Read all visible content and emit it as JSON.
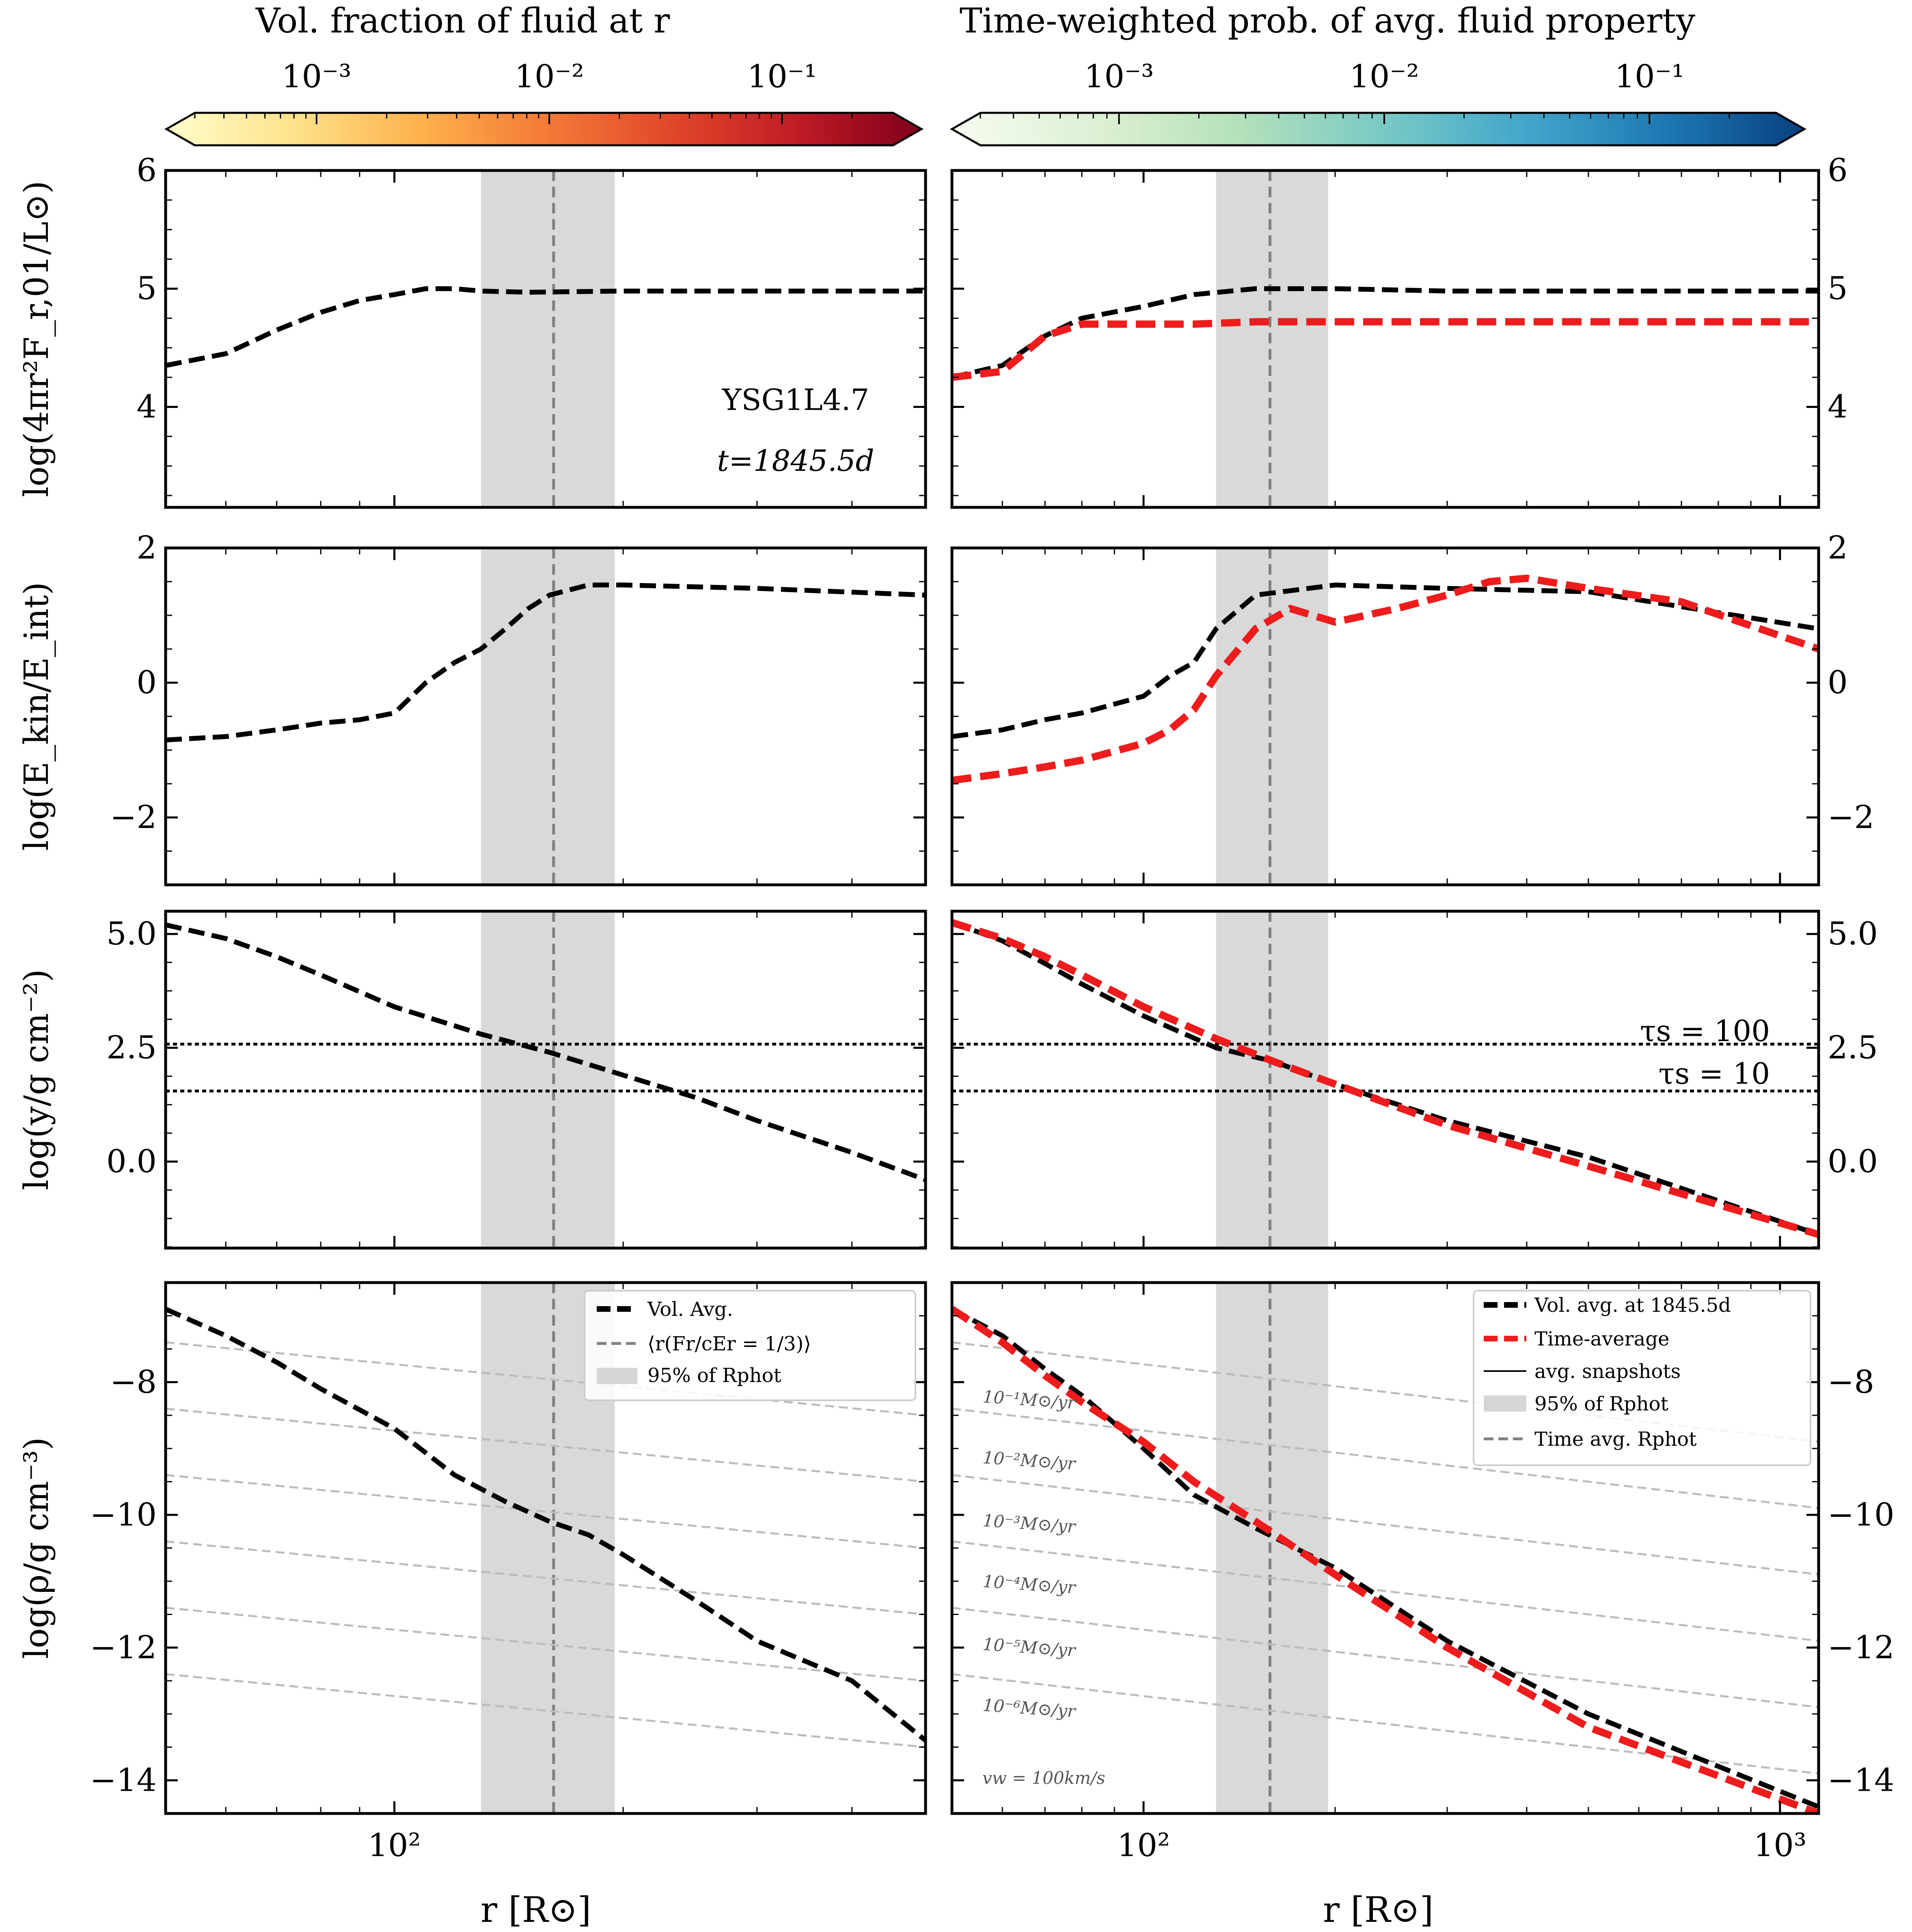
{
  "colorbars": [
    {
      "title": "Vol. fraction of fluid at r",
      "title_math": "r",
      "ticks": [
        "10⁻³",
        "10⁻²",
        "10⁻¹"
      ],
      "tick_values": [
        0.001,
        0.01,
        0.1
      ],
      "range": [
        0.0003,
        0.3
      ],
      "colormap": "YlOrRd",
      "colors": [
        "#fffecb",
        "#fee28a",
        "#fdb04b",
        "#f47b38",
        "#e1472a",
        "#be1a25",
        "#80001c"
      ]
    },
    {
      "title": "Time-weighted prob. of avg. fluid property",
      "ticks": [
        "10⁻³",
        "10⁻²",
        "10⁻¹"
      ],
      "tick_values": [
        0.001,
        0.01,
        0.1
      ],
      "range": [
        0.0003,
        0.3
      ],
      "colormap": "GnBu",
      "colors": [
        "#f7fcf0",
        "#ddf0d4",
        "#b4e0bb",
        "#7acbc4",
        "#43a7cb",
        "#1d78b3",
        "#08407f"
      ]
    }
  ],
  "panels": {
    "left_xlim": [
      50,
      500
    ],
    "right_xlim": [
      50,
      1150
    ],
    "x_scale": "log",
    "x_ticks": [
      "10²",
      "10³"
    ],
    "x_tick_values": [
      100,
      1000
    ],
    "xlabel": "r [R⊙]",
    "rows": [
      {
        "ylabel": "log(4πr²F_r,01/L⊙)",
        "ylim": [
          3.15,
          6
        ],
        "yticks": [
          "4",
          "5",
          "6"
        ],
        "ytick_values": [
          4,
          5,
          6
        ]
      },
      {
        "ylabel": "log(E_kin/E_int)",
        "ylim": [
          -3,
          2
        ],
        "yticks": [
          "−2",
          "0",
          "2"
        ],
        "ytick_values": [
          -2,
          0,
          2
        ]
      },
      {
        "ylabel": "log(y/g cm⁻²)",
        "ylim": [
          -1.9,
          5.5
        ],
        "yticks": [
          "0.0",
          "2.5",
          "5.0"
        ],
        "ytick_values": [
          0,
          2.5,
          5
        ]
      },
      {
        "ylabel": "log(ρ/g cm⁻³)",
        "ylim": [
          -14.5,
          -6.5
        ],
        "yticks": [
          "−14",
          "−12",
          "−10",
          "−8"
        ],
        "ytick_values": [
          -14,
          -12,
          -10,
          -8
        ]
      }
    ]
  },
  "annotations": {
    "model": "YSG1L4.7",
    "time": "t=1845.5d",
    "tau_100": "τs = 100",
    "tau_10": "τs = 10",
    "vw": "vw = 100km/s",
    "mdot_labels": [
      "10⁻¹M⊙/yr",
      "10⁻²M⊙/yr",
      "10⁻³M⊙/yr",
      "10⁻⁴M⊙/yr",
      "10⁻⁵M⊙/yr",
      "10⁻⁶M⊙/yr"
    ]
  },
  "legend_left": [
    {
      "label": "Vol. Avg.",
      "style": "black-dashed-thick"
    },
    {
      "label": "⟨r(Fr/cEr = 1/3)⟩",
      "style": "gray-dashed"
    },
    {
      "label": "95% of Rphot",
      "style": "gray-band"
    }
  ],
  "legend_right": [
    {
      "label": "Vol. avg. at 1845.5d",
      "style": "black-dashed-thick"
    },
    {
      "label": "Time-average",
      "style": "red-dashed-thick"
    },
    {
      "label": "avg. snapshots",
      "style": "black-thin"
    },
    {
      "label": "95% of Rphot",
      "style": "gray-band"
    },
    {
      "label": "Time avg. Rphot",
      "style": "gray-dashed"
    }
  ],
  "chart_data": {
    "type": "line",
    "x_scale": "log",
    "photosphere": {
      "band": [
        130,
        195
      ],
      "left_line": 162,
      "right_line": 158
    },
    "tau_levels": {
      "tau_100": 2.58,
      "tau_10": 1.55
    },
    "series": [
      {
        "name": "Vol. Avg.",
        "panel": "left-row1",
        "x": [
          50,
          60,
          70,
          80,
          90,
          100,
          110,
          120,
          130,
          150,
          200,
          300,
          500
        ],
        "y": [
          4.35,
          4.45,
          4.65,
          4.8,
          4.9,
          4.95,
          5.0,
          5.0,
          4.98,
          4.97,
          4.98,
          4.98,
          4.98
        ]
      },
      {
        "name": "Vol. avg. at 1845.5d",
        "panel": "right-row1",
        "x": [
          50,
          60,
          70,
          80,
          100,
          120,
          150,
          200,
          300,
          500,
          1150
        ],
        "y": [
          4.25,
          4.35,
          4.6,
          4.75,
          4.85,
          4.95,
          5.0,
          5.0,
          4.98,
          4.98,
          4.98
        ]
      },
      {
        "name": "Time-average",
        "panel": "right-row1",
        "x": [
          50,
          60,
          70,
          80,
          100,
          120,
          150,
          200,
          300,
          500,
          1150
        ],
        "y": [
          4.25,
          4.3,
          4.6,
          4.7,
          4.7,
          4.7,
          4.72,
          4.72,
          4.72,
          4.72,
          4.72
        ]
      },
      {
        "name": "Vol. Avg.",
        "panel": "left-row2",
        "x": [
          50,
          60,
          70,
          80,
          90,
          100,
          110,
          120,
          130,
          140,
          150,
          160,
          180,
          200,
          300,
          500
        ],
        "y": [
          -0.85,
          -0.8,
          -0.7,
          -0.6,
          -0.55,
          -0.45,
          0.0,
          0.3,
          0.5,
          0.8,
          1.1,
          1.3,
          1.45,
          1.45,
          1.4,
          1.3
        ]
      },
      {
        "name": "Vol. avg. at 1845.5d",
        "panel": "right-row2",
        "x": [
          50,
          60,
          70,
          80,
          100,
          110,
          120,
          130,
          150,
          200,
          300,
          500,
          1150
        ],
        "y": [
          -0.8,
          -0.7,
          -0.55,
          -0.45,
          -0.2,
          0.1,
          0.3,
          0.8,
          1.3,
          1.45,
          1.4,
          1.35,
          0.8
        ]
      },
      {
        "name": "Time-average",
        "panel": "right-row2",
        "x": [
          50,
          60,
          70,
          80,
          100,
          110,
          120,
          130,
          150,
          170,
          200,
          250,
          300,
          350,
          400,
          500,
          700,
          1150
        ],
        "y": [
          -1.45,
          -1.35,
          -1.25,
          -1.15,
          -0.9,
          -0.7,
          -0.4,
          0.1,
          0.8,
          1.1,
          0.9,
          1.1,
          1.3,
          1.5,
          1.55,
          1.4,
          1.2,
          0.5
        ]
      },
      {
        "name": "Vol. Avg.",
        "panel": "left-row3",
        "x": [
          50,
          60,
          70,
          80,
          100,
          130,
          160,
          200,
          250,
          300,
          400,
          500
        ],
        "y": [
          5.2,
          4.9,
          4.5,
          4.1,
          3.4,
          2.8,
          2.4,
          1.9,
          1.4,
          0.9,
          0.2,
          -0.4
        ]
      },
      {
        "name": "Vol. avg. at 1845.5d",
        "panel": "right-row3",
        "x": [
          50,
          60,
          70,
          80,
          100,
          130,
          160,
          200,
          300,
          500,
          1150
        ],
        "y": [
          5.25,
          4.85,
          4.35,
          3.9,
          3.2,
          2.5,
          2.2,
          1.7,
          0.9,
          0.1,
          -1.6
        ]
      },
      {
        "name": "Time-average",
        "panel": "right-row3",
        "x": [
          50,
          60,
          70,
          80,
          100,
          130,
          160,
          200,
          300,
          500,
          1150
        ],
        "y": [
          5.25,
          4.9,
          4.5,
          4.1,
          3.4,
          2.7,
          2.2,
          1.7,
          0.8,
          -0.1,
          -1.6
        ]
      },
      {
        "name": "Vol. Avg.",
        "panel": "left-row4",
        "x": [
          50,
          60,
          70,
          80,
          100,
          120,
          140,
          160,
          180,
          200,
          250,
          300,
          400,
          500
        ],
        "y": [
          -6.9,
          -7.3,
          -7.7,
          -8.1,
          -8.7,
          -9.4,
          -9.8,
          -10.1,
          -10.3,
          -10.6,
          -11.3,
          -11.9,
          -12.5,
          -13.4
        ]
      },
      {
        "name": "Vol. avg. at 1845.5d",
        "panel": "right-row4",
        "x": [
          50,
          60,
          70,
          80,
          100,
          120,
          150,
          200,
          300,
          500,
          1150
        ],
        "y": [
          -6.9,
          -7.3,
          -7.8,
          -8.2,
          -9.0,
          -9.7,
          -10.2,
          -10.8,
          -11.9,
          -13.0,
          -14.4
        ]
      },
      {
        "name": "Time-average",
        "panel": "right-row4",
        "x": [
          50,
          60,
          70,
          80,
          100,
          120,
          150,
          200,
          300,
          500,
          1150
        ],
        "y": [
          -6.9,
          -7.4,
          -7.9,
          -8.3,
          -8.9,
          -9.5,
          -10.1,
          -10.9,
          -12.0,
          -13.2,
          -14.5
        ]
      }
    ]
  }
}
